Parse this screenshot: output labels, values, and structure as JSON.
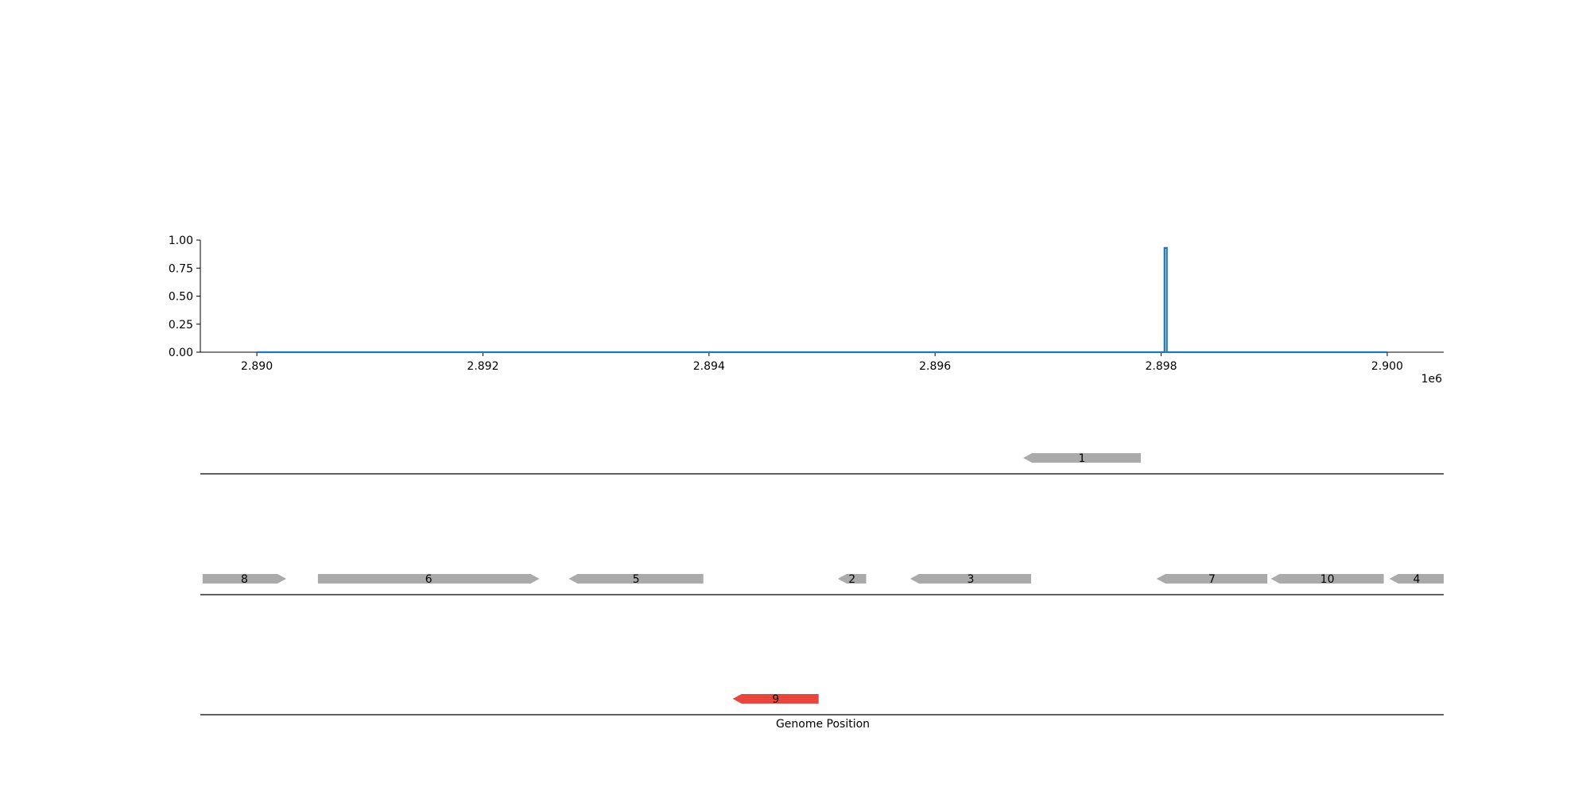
{
  "chart_data": {
    "type": "line",
    "title": "",
    "xlabel": "Genome Position",
    "ylabel": "",
    "x_offset_label": "1e6",
    "xlim": [
      2889500,
      2900500
    ],
    "ylim": [
      0,
      1.0
    ],
    "x_ticks": [
      2890000,
      2892000,
      2894000,
      2896000,
      2898000,
      2900000
    ],
    "x_tick_labels": [
      "2.890",
      "2.892",
      "2.894",
      "2.896",
      "2.898",
      "2.900"
    ],
    "y_ticks": [
      0.0,
      0.25,
      0.5,
      0.75,
      1.0
    ],
    "y_tick_labels": [
      "0.00",
      "0.25",
      "0.50",
      "0.75",
      "1.00"
    ],
    "line_color": "#1f77b4",
    "series": [
      {
        "x": [
          2890000,
          2898030,
          2898030,
          2898050,
          2898050,
          2900000
        ],
        "y": [
          0,
          0,
          0.93,
          0.93,
          0,
          0
        ]
      }
    ],
    "genes": [
      {
        "label": "1",
        "track": 1,
        "start": 2896780,
        "end": 2897820,
        "strand": "-",
        "color": "#aaaaaa"
      },
      {
        "label": "8",
        "track": 2,
        "start": 2889520,
        "end": 2890260,
        "strand": "+",
        "color": "#aaaaaa"
      },
      {
        "label": "6",
        "track": 2,
        "start": 2890540,
        "end": 2892500,
        "strand": "+",
        "color": "#aaaaaa"
      },
      {
        "label": "5",
        "track": 2,
        "start": 2892760,
        "end": 2893950,
        "strand": "-",
        "color": "#aaaaaa"
      },
      {
        "label": "2",
        "track": 2,
        "start": 2895140,
        "end": 2895390,
        "strand": "-",
        "color": "#aaaaaa"
      },
      {
        "label": "3",
        "track": 2,
        "start": 2895780,
        "end": 2896850,
        "strand": "-",
        "color": "#aaaaaa"
      },
      {
        "label": "7",
        "track": 2,
        "start": 2897960,
        "end": 2898940,
        "strand": "-",
        "color": "#aaaaaa"
      },
      {
        "label": "10",
        "track": 2,
        "start": 2898970,
        "end": 2899970,
        "strand": "-",
        "color": "#aaaaaa"
      },
      {
        "label": "4",
        "track": 2,
        "start": 2900020,
        "end": 2900500,
        "strand": "-",
        "color": "#aaaaaa"
      },
      {
        "label": "9",
        "track": 3,
        "start": 2894210,
        "end": 2894970,
        "strand": "-",
        "color": "#e8453c"
      }
    ]
  }
}
